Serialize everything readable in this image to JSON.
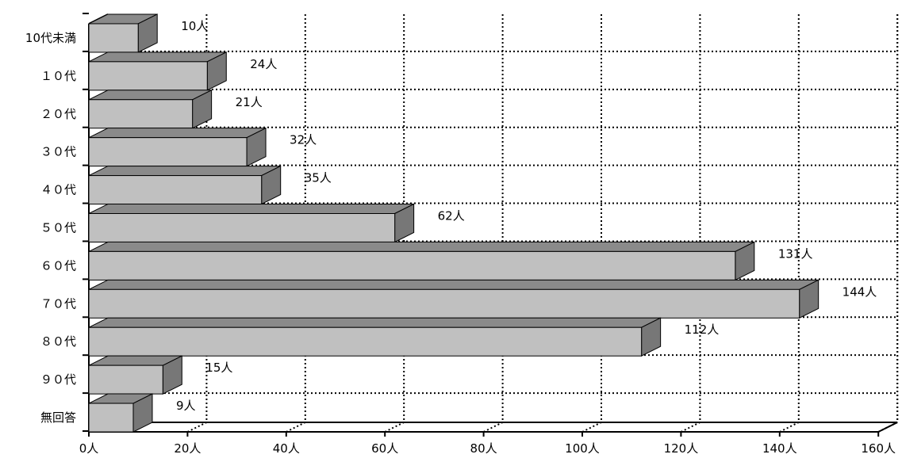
{
  "chart_data": {
    "type": "bar",
    "orientation": "horizontal",
    "style": "3d",
    "categories": [
      "10代未満",
      "１０代",
      "２０代",
      "３０代",
      "４０代",
      "５０代",
      "６０代",
      "７０代",
      "８０代",
      "９０代",
      "無回答"
    ],
    "values": [
      10,
      24,
      21,
      32,
      35,
      62,
      131,
      144,
      112,
      15,
      9
    ],
    "data_labels": [
      "10人",
      "24人",
      "21人",
      "32人",
      "35人",
      "62人",
      "131人",
      "144人",
      "112人",
      "15人",
      "9人"
    ],
    "x_ticks": [
      0,
      20,
      40,
      60,
      80,
      100,
      120,
      140,
      160
    ],
    "x_tick_labels": [
      "0人",
      "20人",
      "40人",
      "60人",
      "80人",
      "100人",
      "120人",
      "140人",
      "160人"
    ],
    "xlim": [
      0,
      160
    ],
    "title": "",
    "xlabel": "",
    "ylabel": "",
    "grid": true,
    "legend": "none",
    "colors": {
      "bar_front": "#c0c0c0",
      "bar_top": "#8a8a8a",
      "bar_side": "#777777",
      "edge": "#000000",
      "grid": "#000000"
    }
  }
}
